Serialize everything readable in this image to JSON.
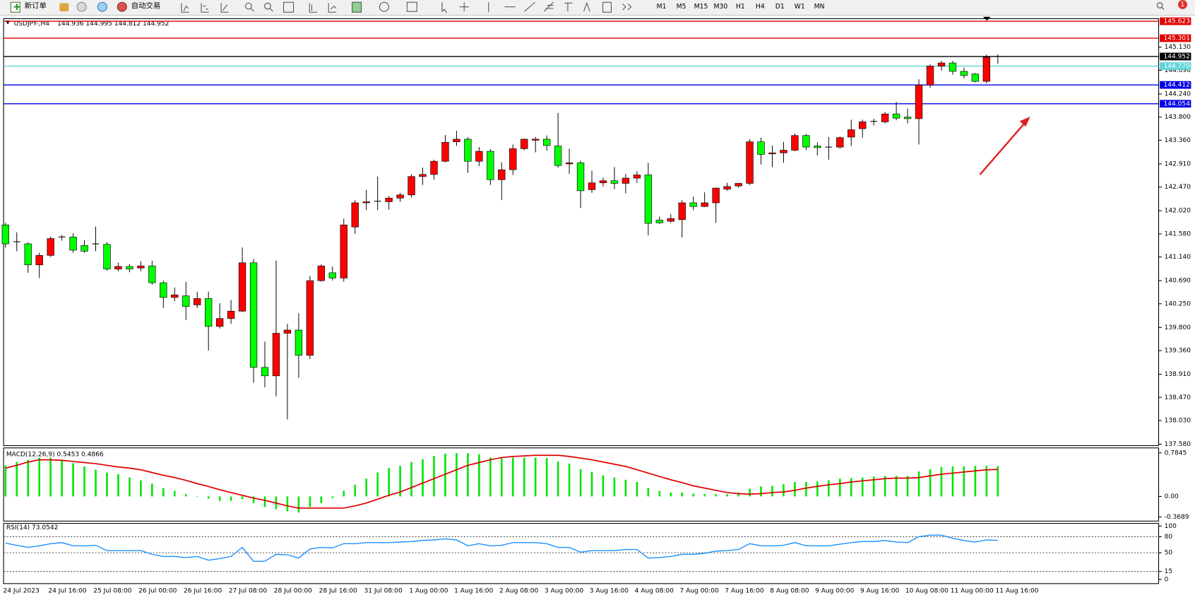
{
  "toolbar": {
    "buttons": [
      "新订单",
      "自动交易"
    ],
    "timeframes": [
      "M1",
      "M5",
      "M15",
      "M30",
      "H1",
      "H4",
      "D1",
      "W1",
      "MN"
    ],
    "notification_count": "1"
  },
  "chart_data": [
    {
      "type": "candlestick",
      "title": "USDJPY-,H4",
      "subtitle": "144.936 144.995 144.812 144.952",
      "up_color": "#ff0000",
      "down_color": "#00ff00",
      "categories": [
        "24 Jul 2023",
        null,
        null,
        null,
        "24 Jul 16:00",
        null,
        null,
        null,
        "25 Jul 08:00",
        null,
        null,
        null,
        "26 Jul 00:00",
        null,
        null,
        null,
        "26 Jul 16:00",
        null,
        null,
        null,
        "27 Jul 08:00",
        null,
        null,
        null,
        "28 Jul 00:00",
        null,
        null,
        null,
        "28 Jul 16:00",
        null,
        null,
        null,
        "31 Jul 08:00",
        null,
        null,
        null,
        "1 Aug 00:00",
        null,
        null,
        null,
        "1 Aug 16:00",
        null,
        null,
        null,
        "2 Aug 08:00",
        null,
        null,
        null,
        "3 Aug 00:00",
        null,
        null,
        null,
        "3 Aug 16:00",
        null,
        null,
        null,
        "4 Aug 08:00",
        null,
        null,
        null,
        "7 Aug 00:00",
        null,
        null,
        null,
        "7 Aug 16:00",
        null,
        null,
        null,
        "8 Aug 08:00",
        null,
        null,
        null,
        "9 Aug 00:00",
        null,
        null,
        null,
        "9 Aug 16:00",
        null,
        null,
        null,
        "10 Aug 08:00",
        null,
        null,
        null,
        "11 Aug 00:00",
        null,
        null,
        null,
        "11 Aug 16:00"
      ],
      "open": [
        141.75,
        141.42,
        141.39,
        140.99,
        141.17,
        141.51,
        141.52,
        141.36,
        141.38,
        141.38,
        140.91,
        140.96,
        140.93,
        140.97,
        140.65,
        140.37,
        140.4,
        140.23,
        140.35,
        139.82,
        139.97,
        140.11,
        141.03,
        139.04,
        138.88,
        139.69,
        139.75,
        139.27,
        140.69,
        140.84,
        140.74,
        141.71,
        142.17,
        142.19,
        142.19,
        142.26,
        142.32,
        142.67,
        142.71,
        142.96,
        143.33,
        143.38,
        142.96,
        143.15,
        142.61,
        142.8,
        143.2,
        143.36,
        143.38,
        143.25,
        142.91,
        142.93,
        142.42,
        142.55,
        142.59,
        142.54,
        142.64,
        142.7,
        141.84,
        141.82,
        141.85,
        142.17,
        142.1,
        142.17,
        142.43,
        142.49,
        142.54,
        143.33,
        143.1,
        143.12,
        143.17,
        143.45,
        143.25,
        143.22,
        143.23,
        143.42,
        143.58,
        143.71,
        143.71,
        143.86,
        143.8,
        143.77,
        144.41,
        144.77,
        144.83,
        144.67,
        144.62,
        144.48,
        144.936
      ],
      "high": [
        141.79,
        141.61,
        141.42,
        141.22,
        141.53,
        141.56,
        141.59,
        141.46,
        141.72,
        141.42,
        141.03,
        141.0,
        141.06,
        141.07,
        140.69,
        140.56,
        140.67,
        140.48,
        140.48,
        140.26,
        140.32,
        141.32,
        141.1,
        139.53,
        141.07,
        139.87,
        140.07,
        140.78,
        141.0,
        140.96,
        141.87,
        142.22,
        142.42,
        142.67,
        142.3,
        142.36,
        142.71,
        142.84,
        142.99,
        143.46,
        143.54,
        143.42,
        143.23,
        143.19,
        142.94,
        143.28,
        143.39,
        143.42,
        143.45,
        143.88,
        143.2,
        142.97,
        142.78,
        142.65,
        142.85,
        142.72,
        142.77,
        142.93,
        141.91,
        141.96,
        142.22,
        142.29,
        142.37,
        142.46,
        142.55,
        142.55,
        143.38,
        143.41,
        143.26,
        143.33,
        143.49,
        143.48,
        143.32,
        143.42,
        143.43,
        143.75,
        143.75,
        143.77,
        143.9,
        144.09,
        143.96,
        144.52,
        144.8,
        144.87,
        144.87,
        144.74,
        144.64,
        144.99,
        144.995
      ],
      "low": [
        141.32,
        141.25,
        140.84,
        140.74,
        141.14,
        141.45,
        141.22,
        141.22,
        141.25,
        140.88,
        140.87,
        140.85,
        140.87,
        140.61,
        140.17,
        140.3,
        139.94,
        140.17,
        139.36,
        139.78,
        139.87,
        140.09,
        138.75,
        138.66,
        138.49,
        138.05,
        138.84,
        139.2,
        140.67,
        140.69,
        140.67,
        141.58,
        142.03,
        142.03,
        142.04,
        142.19,
        142.27,
        142.51,
        142.61,
        142.94,
        143.25,
        142.74,
        142.87,
        142.51,
        142.22,
        142.7,
        143.17,
        143.13,
        143.16,
        142.84,
        142.72,
        142.07,
        142.36,
        142.48,
        142.43,
        142.35,
        142.55,
        141.55,
        141.77,
        141.79,
        141.51,
        142.03,
        142.09,
        141.79,
        142.4,
        142.46,
        142.51,
        142.9,
        142.85,
        142.93,
        143.15,
        143.17,
        143.07,
        142.99,
        143.2,
        143.25,
        143.41,
        143.64,
        143.68,
        143.74,
        143.68,
        143.28,
        144.36,
        144.68,
        144.61,
        144.54,
        144.46,
        144.44,
        144.812
      ],
      "close": [
        141.39,
        141.43,
        140.99,
        141.17,
        141.49,
        141.52,
        141.27,
        141.25,
        141.39,
        140.91,
        140.96,
        140.91,
        140.97,
        140.65,
        140.37,
        140.42,
        140.2,
        140.35,
        139.82,
        139.97,
        140.11,
        141.03,
        139.04,
        138.88,
        139.69,
        139.75,
        139.27,
        140.69,
        140.97,
        140.74,
        141.75,
        142.17,
        142.19,
        142.2,
        142.26,
        142.32,
        142.67,
        142.71,
        142.96,
        143.32,
        143.38,
        142.96,
        143.15,
        142.61,
        142.8,
        143.2,
        143.38,
        143.38,
        143.26,
        142.88,
        142.93,
        142.4,
        142.55,
        142.59,
        142.54,
        142.64,
        142.7,
        141.78,
        141.79,
        141.87,
        142.17,
        142.1,
        142.17,
        142.45,
        142.48,
        142.54,
        143.33,
        143.09,
        143.12,
        143.17,
        143.45,
        143.23,
        143.22,
        143.23,
        143.41,
        143.56,
        143.71,
        143.72,
        143.86,
        143.78,
        143.77,
        144.41,
        144.77,
        144.83,
        144.67,
        144.59,
        144.48,
        144.94,
        144.952
      ],
      "ylim": [
        137.56,
        145.65
      ],
      "yticks": [
        {
          "value": 145.13,
          "label": "145.130"
        },
        {
          "value": 144.69,
          "label": "144.690"
        },
        {
          "value": 144.24,
          "label": "144.240"
        },
        {
          "value": 143.8,
          "label": "143.800"
        },
        {
          "value": 143.36,
          "label": "143.360"
        },
        {
          "value": 142.91,
          "label": "142.910"
        },
        {
          "value": 142.47,
          "label": "142.470"
        },
        {
          "value": 142.02,
          "label": "142.020"
        },
        {
          "value": 141.58,
          "label": "141.580"
        },
        {
          "value": 141.14,
          "label": "141.140"
        },
        {
          "value": 140.69,
          "label": "140.690"
        },
        {
          "value": 140.25,
          "label": "140.250"
        },
        {
          "value": 139.8,
          "label": "139.800"
        },
        {
          "value": 139.36,
          "label": "139.360"
        },
        {
          "value": 138.91,
          "label": "138.910"
        },
        {
          "value": 138.47,
          "label": "138.470"
        },
        {
          "value": 138.03,
          "label": "138.030"
        },
        {
          "value": 137.58,
          "label": "137.580"
        }
      ],
      "levels": [
        145.623,
        145.301,
        144.952,
        {
          "value": 144.77,
          "label": "144.770"
        },
        144.412,
        144.054
      ],
      "level_colors": [
        "#e00000",
        "#e00000",
        "#000000",
        "#5fd4d8",
        "#0000e6",
        "#0000e6"
      ]
    },
    {
      "type": "macd",
      "title": "MACD(12,26,9) 0.5453 0.4866",
      "color": "#00e600",
      "signal_color": "#e00000",
      "values": [
        0.56,
        0.62,
        0.66,
        0.7,
        0.7,
        0.66,
        0.6,
        0.54,
        0.48,
        0.43,
        0.4,
        0.34,
        0.29,
        0.23,
        0.15,
        0.1,
        0.04,
        0,
        -0.04,
        -0.08,
        -0.08,
        -0.05,
        -0.12,
        -0.19,
        -0.23,
        -0.27,
        -0.29,
        -0.19,
        -0.12,
        -0.03,
        0.1,
        0.21,
        0.32,
        0.43,
        0.51,
        0.55,
        0.62,
        0.67,
        0.73,
        0.77,
        0.78,
        0.78,
        0.76,
        0.7,
        0.69,
        0.7,
        0.7,
        0.7,
        0.69,
        0.63,
        0.59,
        0.49,
        0.44,
        0.38,
        0.34,
        0.3,
        0.26,
        0.15,
        0.1,
        0.07,
        0.07,
        0.05,
        0.04,
        0.04,
        0.04,
        0.07,
        0.14,
        0.18,
        0.19,
        0.22,
        0.26,
        0.26,
        0.27,
        0.29,
        0.32,
        0.33,
        0.34,
        0.36,
        0.37,
        0.37,
        0.37,
        0.45,
        0.49,
        0.53,
        0.54,
        0.54,
        0.55,
        0.55,
        0.5453
      ],
      "signal": [
        0.51,
        0.56,
        0.62,
        0.66,
        0.66,
        0.65,
        0.63,
        0.61,
        0.59,
        0.56,
        0.53,
        0.51,
        0.48,
        0.43,
        0.38,
        0.34,
        0.29,
        0.23,
        0.18,
        0.12,
        0.07,
        0.02,
        -0.03,
        -0.07,
        -0.12,
        -0.17,
        -0.21,
        -0.21,
        -0.21,
        -0.21,
        -0.21,
        -0.17,
        -0.12,
        -0.05,
        0.02,
        0.08,
        0.16,
        0.24,
        0.32,
        0.4,
        0.48,
        0.56,
        0.61,
        0.66,
        0.7,
        0.72,
        0.73,
        0.74,
        0.74,
        0.74,
        0.72,
        0.69,
        0.66,
        0.62,
        0.58,
        0.54,
        0.48,
        0.42,
        0.36,
        0.3,
        0.25,
        0.19,
        0.15,
        0.11,
        0.07,
        0.05,
        0.04,
        0.05,
        0.07,
        0.08,
        0.11,
        0.15,
        0.18,
        0.21,
        0.23,
        0.26,
        0.28,
        0.3,
        0.32,
        0.33,
        0.33,
        0.34,
        0.37,
        0.4,
        0.42,
        0.44,
        0.46,
        0.48,
        0.4866
      ],
      "ylim": [
        -0.3689,
        0.7845
      ],
      "yticks": [
        0.7845,
        {
          "value": 0,
          "label": "0.00"
        },
        -0.3689
      ]
    },
    {
      "type": "line",
      "title": "RSI(14) 73.0542",
      "color": "#1e90ff",
      "values": [
        68,
        64,
        60,
        63,
        67,
        69,
        63,
        63,
        64,
        54,
        54,
        54,
        54,
        47,
        43,
        43,
        41,
        43,
        36,
        39,
        43,
        60,
        34,
        34,
        47,
        46,
        40,
        57,
        60,
        59,
        67,
        67,
        69,
        69,
        69,
        70,
        71,
        73,
        74,
        76,
        74,
        63,
        67,
        63,
        64,
        69,
        69,
        69,
        67,
        60,
        60,
        51,
        54,
        54,
        54,
        56,
        56,
        40,
        41,
        43,
        47,
        47,
        49,
        53,
        54,
        56,
        67,
        63,
        63,
        64,
        69,
        63,
        63,
        63,
        66,
        69,
        71,
        71,
        73,
        70,
        69,
        80,
        83,
        83,
        77,
        73,
        70,
        74,
        73.0542
      ],
      "ylim": [
        0,
        100
      ],
      "yticks": [
        100,
        80,
        50,
        15,
        0
      ],
      "levels": [
        80,
        50,
        15
      ]
    }
  ]
}
